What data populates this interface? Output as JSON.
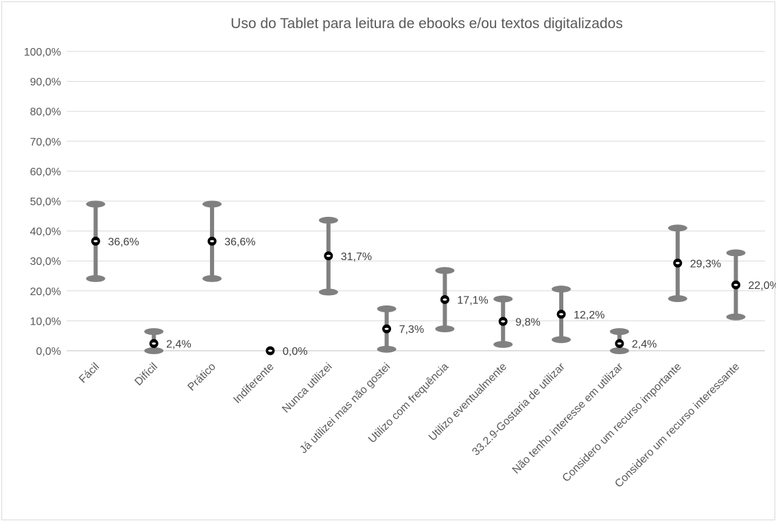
{
  "chart_data": {
    "type": "scatter",
    "title": "Uso do Tablet para leitura de ebooks e/ou textos digitalizados",
    "xlabel": "",
    "ylabel": "",
    "ylim": [
      0,
      100
    ],
    "y_ticks": [
      "0,0%",
      "10,0%",
      "20,0%",
      "30,0%",
      "40,0%",
      "50,0%",
      "60,0%",
      "70,0%",
      "80,0%",
      "90,0%",
      "100,0%"
    ],
    "grid": true,
    "legend": "none",
    "categories": [
      "Fácil",
      "Difícil",
      "Prático",
      "Indiferente",
      "Nunca utilizei",
      "Já utilizei mas não gostei",
      "Utilizo com frequência",
      "Utilizo eventualmente",
      "33.2.9-Gostaria de utilizar",
      "Não tenho interesse em utilizar",
      "Considero um recurso importante",
      "Considero um recurso interessante"
    ],
    "values": [
      36.6,
      2.4,
      36.6,
      0.0,
      31.7,
      7.3,
      17.1,
      9.8,
      12.2,
      2.4,
      29.3,
      22.0
    ],
    "value_labels": [
      "36,6%",
      "2,4%",
      "36,6%",
      "0,0%",
      "31,7%",
      "7,3%",
      "17,1%",
      "9,8%",
      "12,2%",
      "2,4%",
      "29,3%",
      "22,0%"
    ],
    "error_low": [
      24.1,
      0.0,
      24.1,
      null,
      19.6,
      0.5,
      7.3,
      2.1,
      3.7,
      0.0,
      17.4,
      11.3
    ],
    "error_high": [
      49.0,
      6.4,
      49.0,
      null,
      43.6,
      14.0,
      26.8,
      17.3,
      20.6,
      6.4,
      41.0,
      32.7
    ],
    "colors": {
      "error_bar": "#808080",
      "marker": "#000000",
      "grid": "#d9d9d9",
      "text": "#595959"
    }
  }
}
